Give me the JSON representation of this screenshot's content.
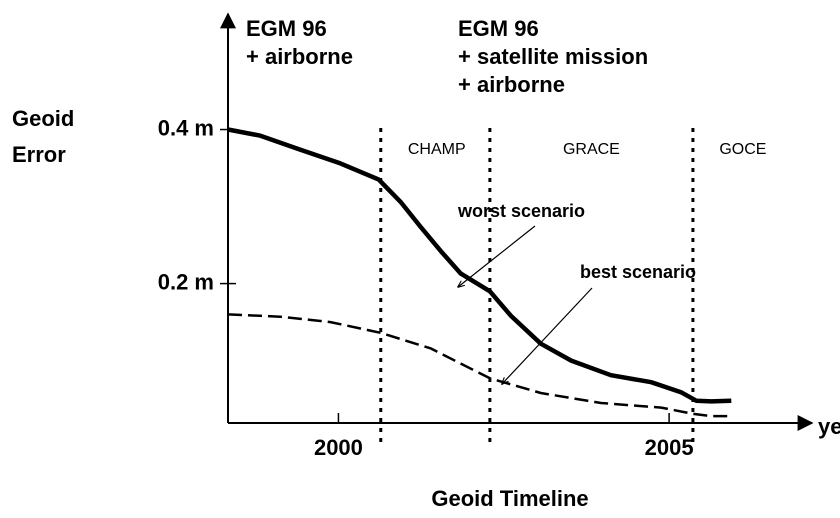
{
  "chart_data": {
    "type": "line",
    "x_label": "Geoid Timeline",
    "x_unit": "year",
    "y_label_lines": [
      "Geoid",
      "Error"
    ],
    "xlim": [
      1998.33,
      2007.2
    ],
    "ylim": [
      0.019,
      0.55
    ],
    "xticks": [
      2000,
      2005
    ],
    "yticks": [
      {
        "value": 0.4,
        "label": "0.4 m"
      },
      {
        "value": 0.2,
        "label": "0.2 m"
      }
    ],
    "series": [
      {
        "name": "worst scenario",
        "color": "#000000",
        "style": "solid",
        "x": [
          1998.33,
          1998.82,
          1999.42,
          2000.03,
          2000.61,
          2000.94,
          2001.24,
          2001.55,
          2001.85,
          2002.29,
          2002.61,
          2003.06,
          2003.52,
          2004.12,
          2004.73,
          2005.18,
          2005.41,
          2005.64,
          2005.94
        ],
        "values": [
          0.4,
          0.392,
          0.374,
          0.356,
          0.335,
          0.306,
          0.274,
          0.242,
          0.213,
          0.19,
          0.158,
          0.122,
          0.1,
          0.081,
          0.072,
          0.059,
          0.048,
          0.047,
          0.048
        ]
      },
      {
        "name": "best scenario",
        "color": "#000000",
        "style": "dashed",
        "x": [
          1998.33,
          1999.12,
          1999.88,
          2000.64,
          2001.39,
          2002.29,
          2003.06,
          2003.97,
          2004.88,
          2005.36,
          2005.64,
          2005.94
        ],
        "values": [
          0.16,
          0.157,
          0.15,
          0.136,
          0.116,
          0.077,
          0.058,
          0.045,
          0.039,
          0.031,
          0.028,
          0.028
        ]
      }
    ],
    "periods": [
      {
        "name": "CHAMP",
        "x": 2000.64
      },
      {
        "name": "GRACE",
        "x": 2002.29
      },
      {
        "name": "GOCE",
        "x": 2005.36
      }
    ],
    "annotations": [
      [
        "EGM 96",
        "+ airborne"
      ],
      [
        "EGM 96",
        "+ satellite mission",
        "+ airborne"
      ]
    ]
  }
}
